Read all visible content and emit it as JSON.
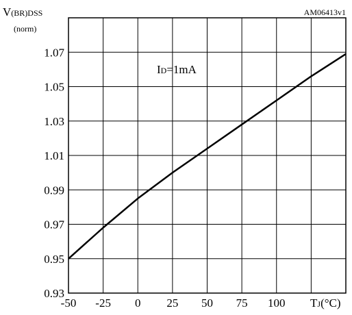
{
  "chart_data": {
    "type": "line",
    "id_code": "AM06413v1",
    "y_axis": {
      "label_main": "V",
      "label_sub": "(BR)DSS",
      "label_unit": "(norm)",
      "ticks": [
        0.93,
        0.95,
        0.97,
        0.99,
        1.01,
        1.03,
        1.05,
        1.07
      ],
      "tick_labels": [
        "0.93",
        "0.95",
        "0.97",
        "0.99",
        "1.01",
        "1.03",
        "1.05",
        "1.07"
      ],
      "range": [
        0.93,
        1.09
      ]
    },
    "x_axis": {
      "label_main": "T",
      "label_sub": "J",
      "label_unit": "(°C)",
      "ticks": [
        -50,
        -25,
        0,
        25,
        50,
        75,
        100
      ],
      "tick_labels": [
        "-50",
        "-25",
        "0",
        "25",
        "50",
        "75",
        "100"
      ],
      "range": [
        -50,
        150
      ]
    },
    "annotation": {
      "main": "I",
      "sub": "D",
      "rest": "=1mA"
    },
    "grid": true,
    "series": [
      {
        "x": [
          -50,
          -25,
          0,
          25,
          50,
          75,
          100,
          125,
          150
        ],
        "y": [
          0.95,
          0.968,
          0.985,
          1.0,
          1.014,
          1.028,
          1.042,
          1.056,
          1.069
        ]
      }
    ]
  }
}
